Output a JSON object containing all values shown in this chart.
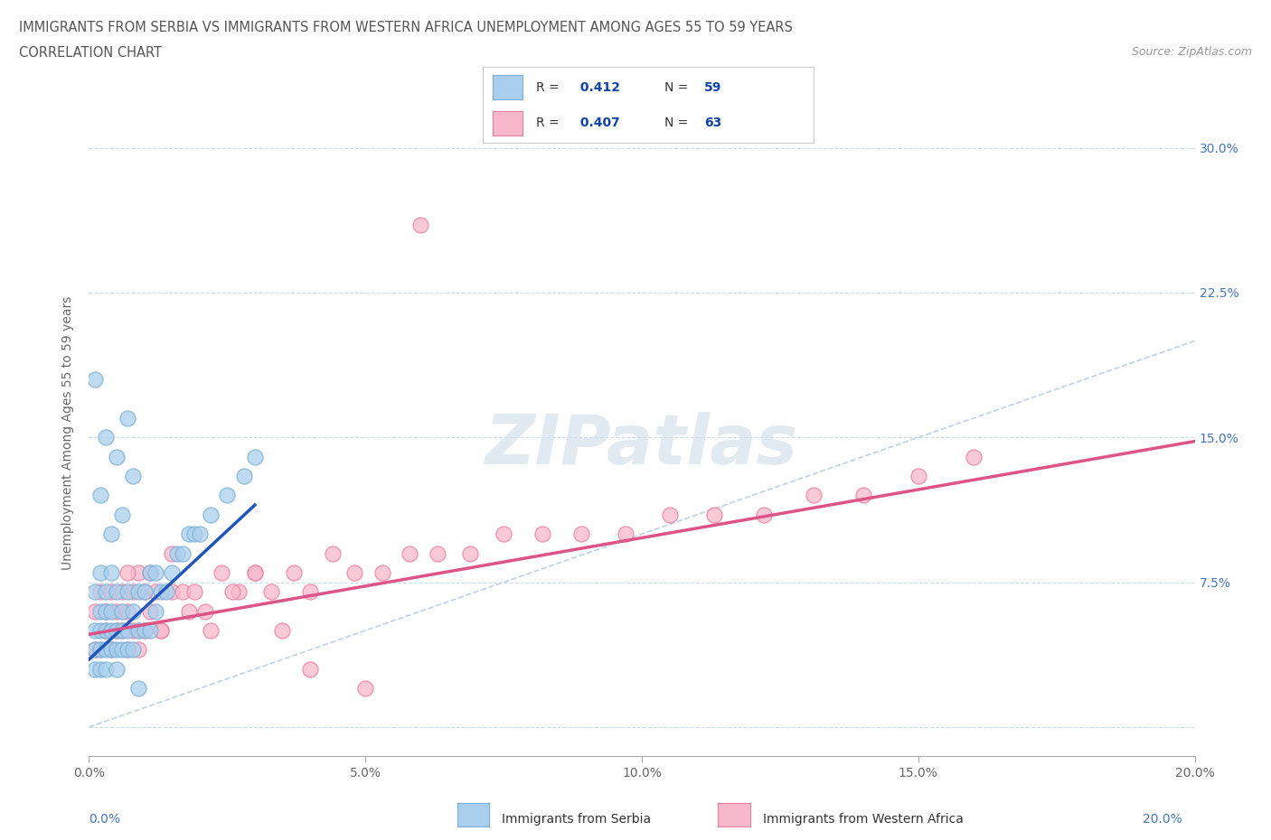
{
  "title_line1": "IMMIGRANTS FROM SERBIA VS IMMIGRANTS FROM WESTERN AFRICA UNEMPLOYMENT AMONG AGES 55 TO 59 YEARS",
  "title_line2": "CORRELATION CHART",
  "source": "Source: ZipAtlas.com",
  "ylabel": "Unemployment Among Ages 55 to 59 years",
  "xlim": [
    0.0,
    0.2
  ],
  "ylim": [
    -0.015,
    0.32
  ],
  "xticks": [
    0.0,
    0.05,
    0.1,
    0.15,
    0.2
  ],
  "xticklabels": [
    "0.0%",
    "5.0%",
    "10.0%",
    "15.0%",
    "20.0%"
  ],
  "yticks": [
    0.0,
    0.075,
    0.15,
    0.225,
    0.3
  ],
  "yticklabels": [
    "",
    "7.5%",
    "15.0%",
    "22.5%",
    "30.0%"
  ],
  "serbia_color": "#aacfee",
  "serbia_edge": "#7bafd4",
  "western_africa_color": "#f8b8cc",
  "western_africa_edge": "#e880a0",
  "serbia_R": 0.412,
  "serbia_N": 59,
  "western_africa_R": 0.407,
  "western_africa_N": 63,
  "serbia_line_color": "#2255bb",
  "western_africa_line_color": "#dd5588",
  "diagonal_color": "#b8cce4",
  "watermark": "ZIPatlas",
  "watermark_color": "#d0dde8",
  "legend_R_color": "#1144aa",
  "serbia_scatter_x": [
    0.001,
    0.001,
    0.001,
    0.001,
    0.002,
    0.002,
    0.002,
    0.002,
    0.002,
    0.003,
    0.003,
    0.003,
    0.003,
    0.003,
    0.004,
    0.004,
    0.004,
    0.004,
    0.005,
    0.005,
    0.005,
    0.005,
    0.006,
    0.006,
    0.006,
    0.007,
    0.007,
    0.007,
    0.008,
    0.008,
    0.009,
    0.009,
    0.01,
    0.01,
    0.011,
    0.011,
    0.012,
    0.012,
    0.013,
    0.014,
    0.015,
    0.016,
    0.017,
    0.018,
    0.019,
    0.02,
    0.022,
    0.025,
    0.028,
    0.03,
    0.001,
    0.002,
    0.003,
    0.004,
    0.005,
    0.006,
    0.007,
    0.008,
    0.009
  ],
  "serbia_scatter_y": [
    0.03,
    0.04,
    0.05,
    0.07,
    0.03,
    0.04,
    0.05,
    0.06,
    0.08,
    0.03,
    0.04,
    0.05,
    0.06,
    0.07,
    0.04,
    0.05,
    0.06,
    0.08,
    0.03,
    0.04,
    0.05,
    0.07,
    0.04,
    0.05,
    0.06,
    0.04,
    0.05,
    0.07,
    0.04,
    0.06,
    0.05,
    0.07,
    0.05,
    0.07,
    0.05,
    0.08,
    0.06,
    0.08,
    0.07,
    0.07,
    0.08,
    0.09,
    0.09,
    0.1,
    0.1,
    0.1,
    0.11,
    0.12,
    0.13,
    0.14,
    0.18,
    0.12,
    0.15,
    0.1,
    0.14,
    0.11,
    0.16,
    0.13,
    0.02
  ],
  "western_africa_scatter_x": [
    0.001,
    0.001,
    0.002,
    0.002,
    0.003,
    0.003,
    0.004,
    0.004,
    0.005,
    0.005,
    0.006,
    0.006,
    0.007,
    0.007,
    0.008,
    0.008,
    0.009,
    0.009,
    0.01,
    0.01,
    0.011,
    0.012,
    0.013,
    0.015,
    0.017,
    0.019,
    0.021,
    0.024,
    0.027,
    0.03,
    0.033,
    0.037,
    0.04,
    0.044,
    0.048,
    0.053,
    0.058,
    0.063,
    0.069,
    0.075,
    0.082,
    0.089,
    0.097,
    0.105,
    0.113,
    0.122,
    0.131,
    0.14,
    0.15,
    0.16,
    0.007,
    0.009,
    0.011,
    0.013,
    0.015,
    0.018,
    0.022,
    0.026,
    0.03,
    0.035,
    0.04,
    0.05,
    0.06
  ],
  "western_africa_scatter_y": [
    0.04,
    0.06,
    0.04,
    0.07,
    0.05,
    0.06,
    0.04,
    0.07,
    0.05,
    0.06,
    0.05,
    0.07,
    0.04,
    0.06,
    0.05,
    0.07,
    0.05,
    0.08,
    0.05,
    0.07,
    0.06,
    0.07,
    0.05,
    0.07,
    0.07,
    0.07,
    0.06,
    0.08,
    0.07,
    0.08,
    0.07,
    0.08,
    0.07,
    0.09,
    0.08,
    0.08,
    0.09,
    0.09,
    0.09,
    0.1,
    0.1,
    0.1,
    0.1,
    0.11,
    0.11,
    0.11,
    0.12,
    0.12,
    0.13,
    0.14,
    0.08,
    0.04,
    0.08,
    0.05,
    0.09,
    0.06,
    0.05,
    0.07,
    0.08,
    0.05,
    0.03,
    0.02,
    0.26
  ],
  "serbia_line_x0": 0.0,
  "serbia_line_y0": 0.035,
  "serbia_line_x1": 0.03,
  "serbia_line_y1": 0.115,
  "western_line_x0": 0.0,
  "western_line_y0": 0.048,
  "western_line_x1": 0.2,
  "western_line_y1": 0.148
}
